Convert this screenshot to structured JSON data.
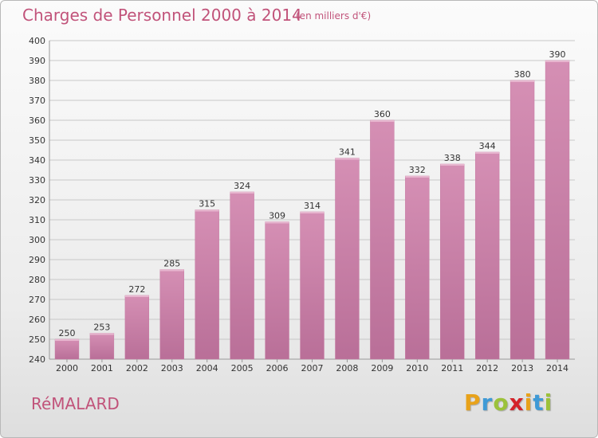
{
  "header": {
    "title": "Charges de Personnel 2000 à 2014",
    "subtitle": "(en milliers d'€)"
  },
  "footer": {
    "commune": "RéMALARD",
    "logo": {
      "letters": [
        "P",
        "r",
        "o",
        "x",
        "i",
        "t",
        "i"
      ],
      "colors": [
        "#e8a21a",
        "#3f9ad6",
        "#9cc23a",
        "#d4232a",
        "#e8a21a",
        "#3f9ad6",
        "#9cc23a"
      ]
    }
  },
  "colors": {
    "bar": "#d58fb4",
    "bar_dark": "#b96f98",
    "text": "#c1537a",
    "grid": "#c8c8c8",
    "axis_text": "#333333"
  },
  "chart_data": {
    "type": "bar",
    "title": "Charges de Personnel 2000 à 2014",
    "subtitle": "(en milliers d'€)",
    "categories": [
      "2000",
      "2001",
      "2002",
      "2003",
      "2004",
      "2005",
      "2006",
      "2007",
      "2008",
      "2009",
      "2010",
      "2011",
      "2012",
      "2013",
      "2014"
    ],
    "values": [
      250,
      253,
      272,
      285,
      315,
      324,
      309,
      314,
      341,
      360,
      332,
      338,
      344,
      380,
      390
    ],
    "ylim": [
      240,
      400
    ],
    "yticks": [
      240,
      250,
      260,
      270,
      280,
      290,
      300,
      310,
      320,
      330,
      340,
      350,
      360,
      370,
      380,
      390,
      400
    ],
    "grid": true,
    "data_labels": true
  }
}
